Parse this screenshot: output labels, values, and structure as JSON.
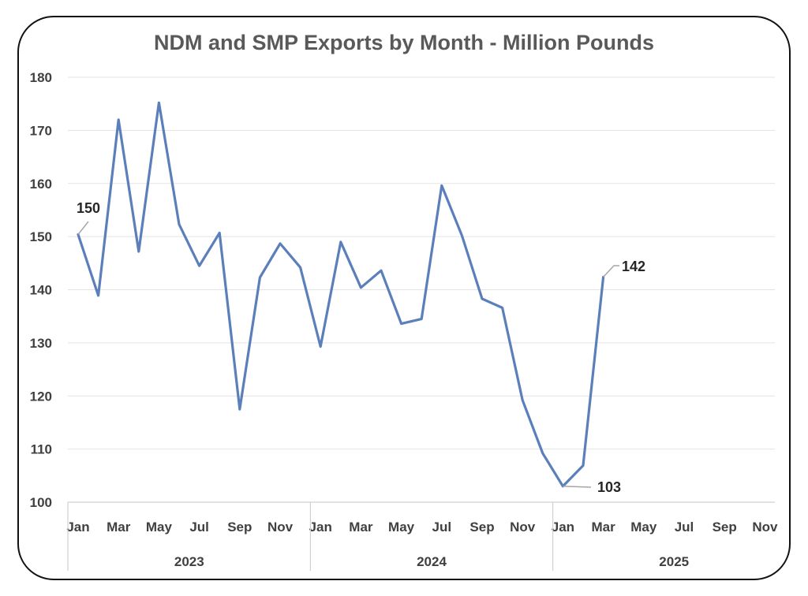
{
  "chart_data": {
    "type": "line",
    "title": "NDM and SMP Exports by Month - Million Pounds",
    "ylim": [
      100,
      180
    ],
    "yticks": [
      100,
      110,
      120,
      130,
      140,
      150,
      160,
      170,
      180
    ],
    "x_tick_labels": [
      "Jan",
      "Mar",
      "May",
      "Jul",
      "Sep",
      "Nov",
      "Jan",
      "Mar",
      "May",
      "Jul",
      "Sep",
      "Nov",
      "Jan",
      "Mar",
      "May",
      "Jul",
      "Sep",
      "Nov"
    ],
    "years": [
      "2023",
      "2024",
      "2025"
    ],
    "grid": true,
    "legend": false,
    "line_color": "#5b7fba",
    "series": [
      {
        "x": [
          "2023-01",
          "2023-02",
          "2023-03",
          "2023-04",
          "2023-05",
          "2023-06",
          "2023-07",
          "2023-08",
          "2023-09",
          "2023-10",
          "2023-11",
          "2023-12",
          "2024-01",
          "2024-02",
          "2024-03",
          "2024-04",
          "2024-05",
          "2024-06",
          "2024-07",
          "2024-08",
          "2024-09",
          "2024-10",
          "2024-11",
          "2024-12",
          "2025-01",
          "2025-02",
          "2025-03"
        ],
        "values": [
          150.4,
          138.9,
          172.0,
          147.2,
          175.2,
          152.3,
          144.5,
          150.7,
          117.5,
          142.3,
          148.7,
          144.2,
          129.3,
          149.0,
          140.4,
          143.6,
          133.6,
          134.5,
          159.6,
          150.2,
          138.3,
          136.6,
          119.2,
          109.2,
          103.0,
          106.9,
          142.4
        ]
      }
    ],
    "data_labels": [
      {
        "label": "150"
      },
      {
        "label": "103"
      },
      {
        "label": "142"
      }
    ]
  }
}
